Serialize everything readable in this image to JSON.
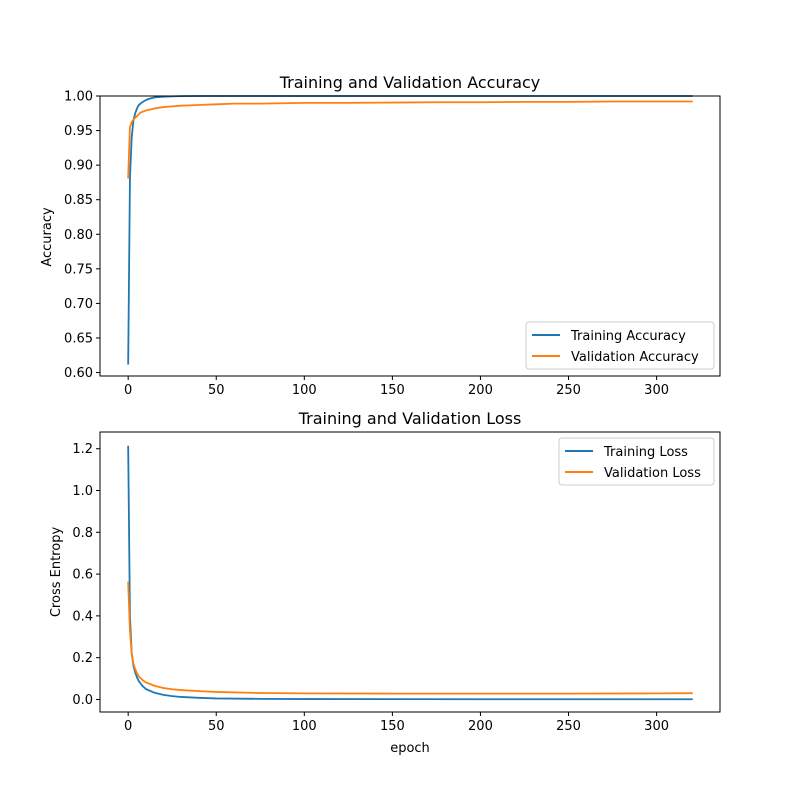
{
  "chart_data": [
    {
      "type": "line",
      "title": "Training and Validation Accuracy",
      "xlabel": "",
      "ylabel": "Accuracy",
      "xlim": [
        -16,
        336
      ],
      "ylim": [
        0.595,
        1.0
      ],
      "xticks": [
        0,
        50,
        100,
        150,
        200,
        250,
        300
      ],
      "xtick_labels": [
        "0",
        "50",
        "100",
        "150",
        "200",
        "250",
        "300"
      ],
      "yticks": [
        0.6,
        0.65,
        0.7,
        0.75,
        0.8,
        0.85,
        0.9,
        0.95,
        1.0
      ],
      "ytick_labels": [
        "0.60",
        "0.65",
        "0.70",
        "0.75",
        "0.80",
        "0.85",
        "0.90",
        "0.95",
        "1.00"
      ],
      "legend_position": "lower-right",
      "series": [
        {
          "name": "Training Accuracy",
          "color": "#1f77b4",
          "x": [
            0,
            1,
            2,
            3,
            4,
            5,
            6,
            8,
            10,
            12,
            15,
            20,
            25,
            30,
            40,
            50,
            75,
            100,
            150,
            200,
            250,
            300,
            320
          ],
          "y": [
            0.613,
            0.88,
            0.94,
            0.965,
            0.975,
            0.982,
            0.987,
            0.991,
            0.994,
            0.996,
            0.998,
            0.999,
            0.9995,
            0.9998,
            1.0,
            1.0,
            1.0,
            1.0,
            1.0,
            1.0,
            1.0,
            1.0,
            1.0
          ]
        },
        {
          "name": "Validation Accuracy",
          "color": "#ff7f0e",
          "x": [
            0,
            1,
            2,
            3,
            5,
            7,
            10,
            15,
            20,
            25,
            30,
            40,
            50,
            60,
            75,
            100,
            125,
            150,
            175,
            200,
            225,
            250,
            275,
            300,
            320
          ],
          "y": [
            0.882,
            0.955,
            0.962,
            0.966,
            0.971,
            0.976,
            0.979,
            0.982,
            0.984,
            0.985,
            0.986,
            0.987,
            0.988,
            0.989,
            0.989,
            0.99,
            0.99,
            0.9905,
            0.991,
            0.991,
            0.9915,
            0.9915,
            0.992,
            0.992,
            0.992
          ]
        }
      ]
    },
    {
      "type": "line",
      "title": "Training and Validation Loss",
      "xlabel": "epoch",
      "ylabel": "Cross Entropy",
      "xlim": [
        -16,
        336
      ],
      "ylim": [
        -0.06,
        1.28
      ],
      "xticks": [
        0,
        50,
        100,
        150,
        200,
        250,
        300
      ],
      "xtick_labels": [
        "0",
        "50",
        "100",
        "150",
        "200",
        "250",
        "300"
      ],
      "yticks": [
        0.0,
        0.2,
        0.4,
        0.6,
        0.8,
        1.0,
        1.2
      ],
      "ytick_labels": [
        "0.0",
        "0.2",
        "0.4",
        "0.6",
        "0.8",
        "1.0",
        "1.2"
      ],
      "legend_position": "upper-right",
      "series": [
        {
          "name": "Training Loss",
          "color": "#1f77b4",
          "x": [
            0,
            1,
            2,
            3,
            4,
            5,
            6,
            8,
            10,
            15,
            20,
            25,
            30,
            40,
            50,
            75,
            100,
            150,
            200,
            250,
            300,
            320
          ],
          "y": [
            1.21,
            0.4,
            0.22,
            0.16,
            0.13,
            0.105,
            0.088,
            0.066,
            0.05,
            0.032,
            0.022,
            0.016,
            0.012,
            0.008,
            0.005,
            0.003,
            0.002,
            0.0015,
            0.001,
            0.001,
            0.001,
            0.001
          ]
        },
        {
          "name": "Validation Loss",
          "color": "#ff7f0e",
          "x": [
            0,
            1,
            2,
            3,
            4,
            5,
            6,
            8,
            10,
            15,
            20,
            25,
            30,
            40,
            50,
            75,
            100,
            150,
            200,
            250,
            300,
            320
          ],
          "y": [
            0.56,
            0.33,
            0.22,
            0.17,
            0.145,
            0.125,
            0.11,
            0.094,
            0.082,
            0.065,
            0.055,
            0.049,
            0.045,
            0.04,
            0.036,
            0.031,
            0.029,
            0.028,
            0.028,
            0.028,
            0.029,
            0.03
          ]
        }
      ]
    }
  ]
}
